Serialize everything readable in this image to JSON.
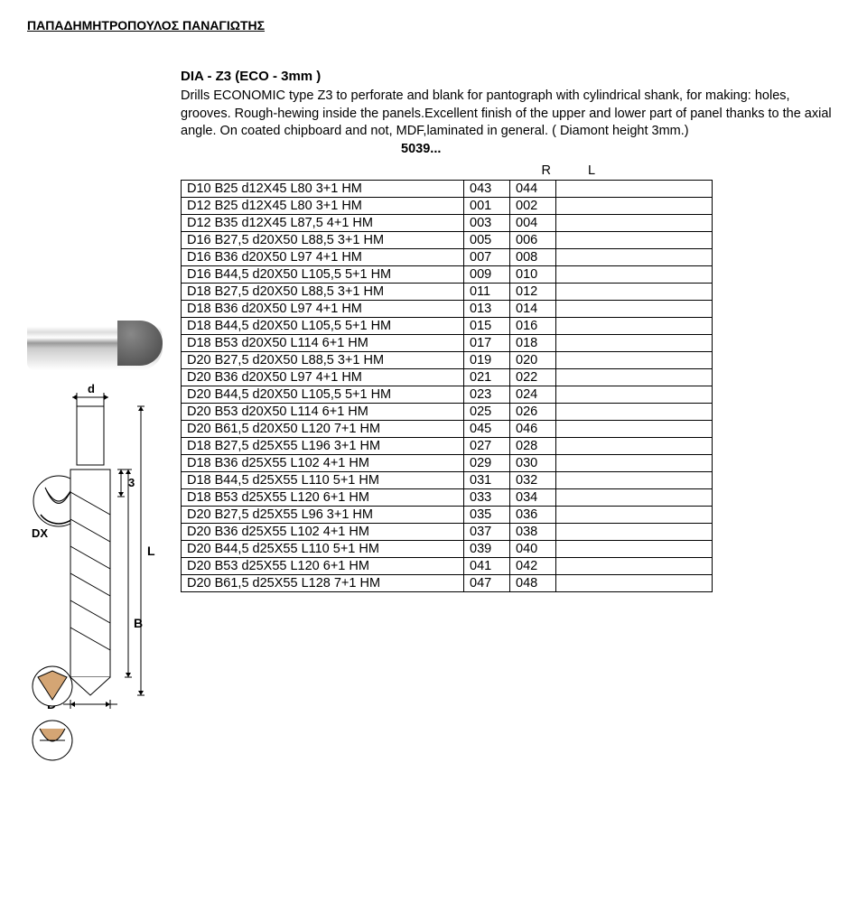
{
  "header": "ΠΑΠΑΔΗΜΗΤΡΟΠΟΥΛΟΣ ΠΑΝΑΓΙΩΤΗΣ",
  "title": "DIA -  Z3    (ECO - 3mm )",
  "description": "Drills ECONOMIC type Z3 to perforate and blank for pantograph with cylindrical shank, for making: holes, grooves. Rough-hewing inside the panels.Excellent finish of the upper and lower part of panel thanks  to the axial angle. On coated chipboard and not, MDF,laminated in general. ( Diamont height 3mm.)",
  "code": "5039...",
  "rl": {
    "r": "R",
    "l": "L"
  },
  "diagram_labels": {
    "d": "d",
    "dx": "DX",
    "three": "3",
    "L": "L",
    "B": "B",
    "D": "D"
  },
  "table": {
    "columns": [
      "spec",
      "r",
      "l",
      "blank"
    ],
    "rows": [
      [
        "D10  B25     d12X45  L80       3+1 HM",
        "043",
        "044",
        ""
      ],
      [
        "D12  B25     d12X45  L80       3+1 HM",
        "001",
        "002",
        ""
      ],
      [
        "D12  B35     d12X45  L87,5    4+1 HM",
        "003",
        "004",
        ""
      ],
      [
        "D16  B27,5  d20X50  L88,5    3+1 HM",
        "005",
        "006",
        ""
      ],
      [
        "D16  B36     d20X50  L97       4+1 HM",
        "007",
        "008",
        ""
      ],
      [
        "D16  B44,5  d20X50  L105,5  5+1 HM",
        "009",
        "010",
        ""
      ],
      [
        "D18  B27,5  d20X50  L88,5    3+1 HM",
        "011",
        "012",
        ""
      ],
      [
        "D18  B36     d20X50  L97       4+1 HM",
        "013",
        "014",
        ""
      ],
      [
        "D18  B44,5  d20X50  L105,5  5+1 HM",
        "015",
        "016",
        ""
      ],
      [
        "D18  B53     d20X50  L114     6+1 HM",
        "017",
        "018",
        ""
      ],
      [
        "D20  B27,5  d20X50  L88,5    3+1 HM",
        "019",
        "020",
        ""
      ],
      [
        "D20  B36     d20X50  L97       4+1 HM",
        "021",
        "022",
        ""
      ],
      [
        "D20  B44,5  d20X50  L105,5  5+1 HM",
        "023",
        "024",
        ""
      ],
      [
        "D20  B53     d20X50  L114     6+1 HM",
        "025",
        "026",
        ""
      ],
      [
        "D20  B61,5  d20X50  L120     7+1 HM",
        "045",
        "046",
        ""
      ],
      [
        "D18  B27,5  d25X55  L196     3+1 HM",
        "027",
        "028",
        ""
      ],
      [
        "D18  B36     d25X55  L102     4+1 HM",
        "029",
        "030",
        ""
      ],
      [
        "D18  B44,5  d25X55  L110     5+1 HM",
        "031",
        "032",
        ""
      ],
      [
        "D18  B53     d25X55  L120     6+1 HM",
        "033",
        "034",
        ""
      ],
      [
        "D20  B27,5  d25X55  L96       3+1 HM",
        "035",
        "036",
        ""
      ],
      [
        "D20  B36     d25X55  L102     4+1 HM",
        "037",
        "038",
        ""
      ],
      [
        "D20  B44,5  d25X55  L110     5+1 HM",
        "039",
        "040",
        ""
      ],
      [
        "D20  B53     d25X55  L120     6+1 HM",
        "041",
        "042",
        ""
      ],
      [
        "D20  B61,5  d25X55  L128     7+1 HM",
        "047",
        "048",
        ""
      ]
    ]
  }
}
